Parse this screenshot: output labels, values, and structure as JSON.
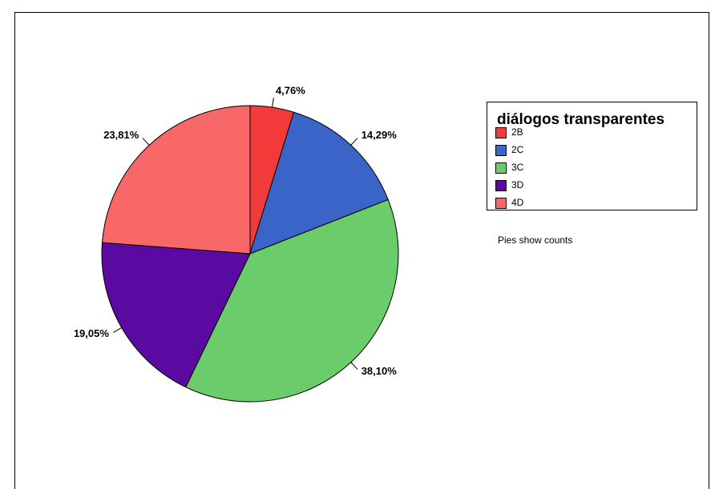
{
  "chart_data": {
    "type": "pie",
    "legend_title": "diálogos transparentes",
    "categories": [
      "2B",
      "2C",
      "3C",
      "3D",
      "4D"
    ],
    "values": [
      4.76,
      14.29,
      38.1,
      19.05,
      23.81
    ],
    "value_labels": [
      "4,76%",
      "14,29%",
      "38,10%",
      "19,05%",
      "23,81%"
    ],
    "colors": [
      "#f23a3a",
      "#3a64c8",
      "#6bcc6b",
      "#5a0aa0",
      "#f86868"
    ],
    "annotation": "Pies show counts",
    "legend": "right"
  }
}
